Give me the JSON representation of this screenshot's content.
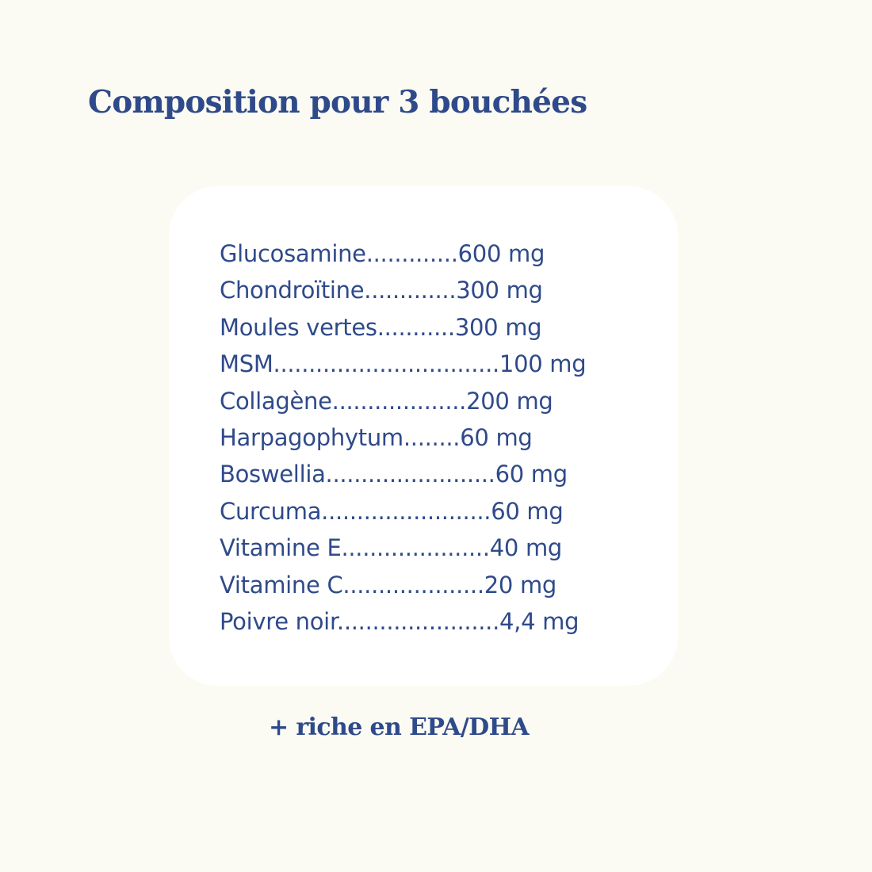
{
  "title": "Composition pour 3 bouchées",
  "ingredients": [
    {
      "line": "Glucosamine.............600 mg"
    },
    {
      "line": "Chondroïtine.............300 mg"
    },
    {
      "line": "Moules vertes...........300 mg"
    },
    {
      "line": "MSM................................100 mg"
    },
    {
      "line": "Collagène...................200 mg"
    },
    {
      "line": "Harpagophytum........60 mg"
    },
    {
      "line": "Boswellia........................60 mg"
    },
    {
      "line": "Curcuma........................60 mg"
    },
    {
      "line": "Vitamine E.....................40 mg"
    },
    {
      "line": "Vitamine C....................20 mg"
    },
    {
      "line": "Poivre noir.......................4,4 mg"
    }
  ],
  "footer": "+ riche en EPA/DHA",
  "colors": {
    "text": "#2f4a8a",
    "background": "#fbfbf3",
    "card": "#ffffff"
  }
}
